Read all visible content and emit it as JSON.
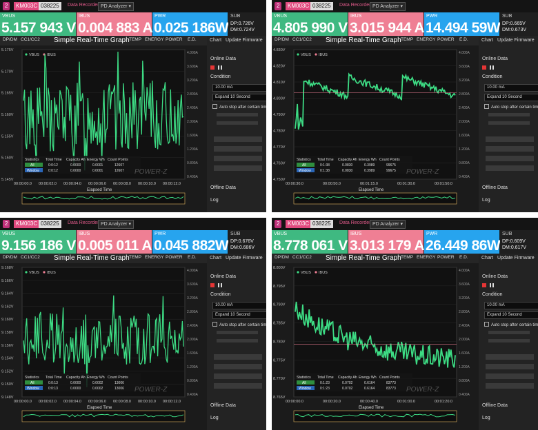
{
  "app": {
    "badge": "2",
    "model": "KM003C",
    "serial": "038225",
    "menu_recorder": "Data Recorder",
    "menu_analyzer": "PD Analyzer ▾"
  },
  "common": {
    "vbus_label": "VBUS",
    "ibus_label": "IBUS",
    "pwr_label": "PWR",
    "sub_label": "SUB",
    "tabs": [
      "DP/DM",
      "CC1/CC2",
      "TEMP",
      "ENERGY",
      "POWER",
      "E.D."
    ],
    "chart_title": "Simple Real-Time Graph",
    "legend_vbus": "VBUS",
    "legend_ibus": "IBUS",
    "elapsed_label": "Elapsed Time",
    "watermark": "POWER-Z",
    "stats_headers": [
      "Statistics",
      "Total Time",
      "Capacity Ah",
      "Energy Wh",
      "Count Points"
    ],
    "row_all": "All",
    "row_window": "Window",
    "side_tab_chart": "Chart",
    "side_tab_update": "Update Firmware",
    "online_data": "Online Data",
    "condition": "Condition",
    "ma_value": "10.00 mA",
    "auto_stop": "Auto stop after certain time",
    "offline_data": "Offline Data",
    "log": "Log",
    "colors": {
      "vbus": "#3fb981",
      "ibus": "#ef7f94",
      "pwr": "#27a4ee",
      "trace": "#3ddc84"
    }
  },
  "panels": [
    {
      "vbus": "5.157 943 V",
      "ibus": "0.004 883 A",
      "pwr": "0.025 186W",
      "sub1": "DP:0.726V",
      "sub2": "DM:0.724V",
      "expand": "Expand 10 Second",
      "stats_all": [
        "0:0:12",
        "0.0000",
        "0.0001",
        "12607"
      ],
      "stats_window": [
        "0:0:12",
        "0.0000",
        "0.0001",
        "12607"
      ],
      "yticks": [
        "5.175V",
        "5.170V",
        "5.165V",
        "5.160V",
        "5.155V",
        "5.150V",
        "5.145V"
      ],
      "itext": [
        "4.000A",
        "3.600A",
        "3.200A",
        "2.800A",
        "2.400A",
        "2.000A",
        "1.600A",
        "1.200A",
        "0.800A",
        "0.400A"
      ],
      "xticks": [
        "00:00:00.0",
        "00:00:02.0",
        "00:00:04.0",
        "00:00:06.0",
        "00:00:08.0",
        "00:00:10.0",
        "00:00:12.0"
      ],
      "chart_data": {
        "type": "line",
        "series": [
          {
            "name": "VBUS",
            "style": "noise",
            "center": 5.1595,
            "amplitude": 0.008
          }
        ],
        "ylim": [
          5.145,
          5.175
        ]
      }
    },
    {
      "vbus": "4.805 990 V",
      "ibus": "3.015 944 A",
      "pwr": "14.494 59W",
      "sub1": "DP:0.665V",
      "sub2": "DM:0.673V",
      "expand": "Expand 10 Second",
      "stats_all": [
        "0:1:38",
        "0.0830",
        "0.3989",
        "99675"
      ],
      "stats_window": [
        "0:1:38",
        "0.0830",
        "0.3989",
        "99675"
      ],
      "yticks": [
        "4.830V",
        "4.820V",
        "4.810V",
        "4.800V",
        "4.790V",
        "4.780V",
        "4.770V",
        "4.760V",
        "4.750V"
      ],
      "itext": [
        "4.000A",
        "3.600A",
        "3.200A",
        "2.800A",
        "2.400A",
        "2.000A",
        "1.600A",
        "1.200A",
        "0.800A",
        "0.400A"
      ],
      "xticks": [
        "00:00:30.0",
        "00:00:50.0",
        "00:01:15.0",
        "00:01:30.0",
        "00:01:50.0"
      ],
      "chart_data": {
        "type": "line",
        "series": [
          {
            "name": "VBUS",
            "style": "sawtooth",
            "center": 4.805,
            "amplitude": 0.004
          }
        ],
        "ylim": [
          4.75,
          4.83
        ]
      }
    },
    {
      "vbus": "9.156 186 V",
      "ibus": "0.005 011 A",
      "pwr": "0.045 882W",
      "sub1": "DP:0.676V",
      "sub2": "DM:0.686V",
      "expand": "Expand 10 Second",
      "stats_all": [
        "0:0:13",
        "0.0000",
        "0.0002",
        "13006"
      ],
      "stats_window": [
        "0:0:13",
        "0.0000",
        "0.0002",
        "13006"
      ],
      "yticks": [
        "9.168V",
        "9.166V",
        "9.164V",
        "9.162V",
        "9.160V",
        "9.158V",
        "9.156V",
        "9.154V",
        "9.152V",
        "9.150V",
        "9.148V"
      ],
      "itext": [
        "4.000A",
        "3.600A",
        "3.200A",
        "2.800A",
        "2.400A",
        "2.000A",
        "1.600A",
        "1.200A",
        "0.800A",
        "0.400A"
      ],
      "xticks": [
        "00:00:00.0",
        "00:00:02.0",
        "00:00:04.0",
        "00:00:06.0",
        "00:00:08.0",
        "00:00:10.0",
        "00:00:12.0"
      ],
      "chart_data": {
        "type": "line",
        "series": [
          {
            "name": "VBUS",
            "style": "noise",
            "center": 9.157,
            "amplitude": 0.004
          }
        ],
        "ylim": [
          9.148,
          9.168
        ]
      }
    },
    {
      "vbus": "8.778 061 V",
      "ibus": "3.013 179 A",
      "pwr": "26.449 86W",
      "sub1": "DP:0.609V",
      "sub2": "DM:0.617V",
      "expand": "Expand 10 Second",
      "stats_all": [
        "0:1:23",
        "0.0702",
        "0.6164",
        "83773"
      ],
      "stats_window": [
        "0:1:23",
        "0.0702",
        "0.6164",
        "83773"
      ],
      "yticks": [
        "8.800V",
        "8.795V",
        "8.790V",
        "8.785V",
        "8.780V",
        "8.775V",
        "8.770V",
        "8.765V"
      ],
      "itext": [
        "4.000A",
        "3.600A",
        "3.200A",
        "2.800A",
        "2.400A",
        "2.000A",
        "1.600A",
        "1.200A",
        "0.800A",
        "0.400A"
      ],
      "xticks": [
        "00:00:00.0",
        "00:00:20.0",
        "00:00:40.0",
        "00:01:00.0",
        "00:01:20.0"
      ],
      "chart_data": {
        "type": "line",
        "series": [
          {
            "name": "VBUS",
            "style": "decay",
            "center": 8.78,
            "amplitude": 0.003
          }
        ],
        "ylim": [
          8.765,
          8.8
        ]
      }
    }
  ]
}
